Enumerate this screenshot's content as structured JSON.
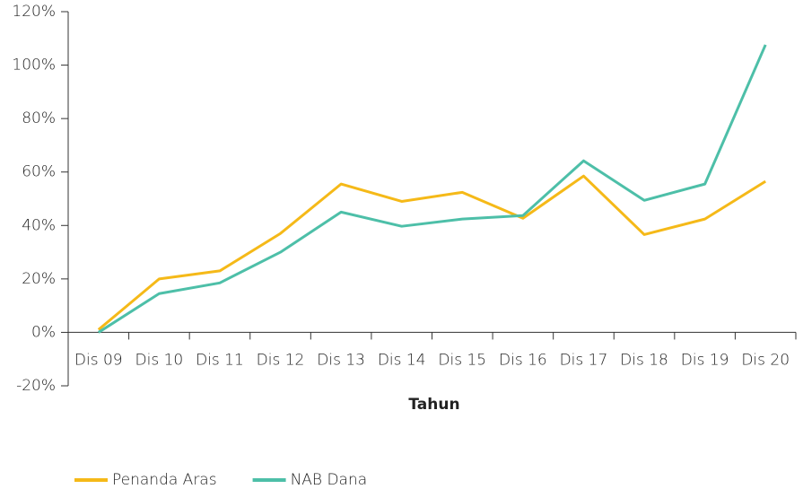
{
  "chart_data": {
    "type": "line",
    "categories": [
      "Dis 09",
      "Dis 10",
      "Dis 11",
      "Dis 12",
      "Dis 13",
      "Dis 14",
      "Dis 15",
      "Dis 16",
      "Dis 17",
      "Dis 18",
      "Dis 19",
      "Dis 20"
    ],
    "series": [
      {
        "name": "Penanda Aras",
        "color": "#f5b918",
        "values": [
          1,
          20,
          23,
          37,
          55.5,
          49,
          52.4,
          42.7,
          58.5,
          36.6,
          42.4,
          56.5
        ]
      },
      {
        "name": "NAB Dana",
        "color": "#4dbfa8",
        "values": [
          0,
          14.5,
          18.5,
          30,
          45,
          39.7,
          42.4,
          43.7,
          64.2,
          49.4,
          55.5,
          107.6
        ]
      }
    ],
    "x_label": "Tahun",
    "ylim": [
      -20,
      120
    ],
    "yticks": [
      {
        "value": -20,
        "label": "-20%"
      },
      {
        "value": 0,
        "label": "0%"
      },
      {
        "value": 20,
        "label": "20%"
      },
      {
        "value": 40,
        "label": "40%"
      },
      {
        "value": 60,
        "label": "60%"
      },
      {
        "value": 80,
        "label": "80%"
      },
      {
        "value": 100,
        "label": "100%"
      },
      {
        "value": 120,
        "label": "120%"
      }
    ],
    "grid": false,
    "legend": "bottom-left"
  }
}
